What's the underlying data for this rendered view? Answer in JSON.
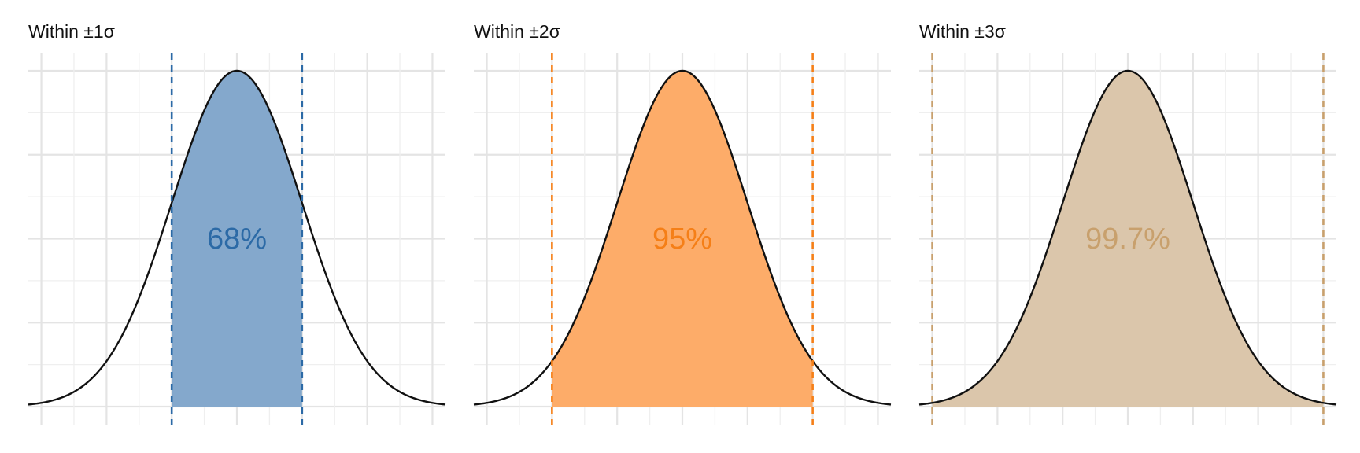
{
  "chart_data": [
    {
      "type": "area",
      "title": "Within ±1σ",
      "label": "68%",
      "sigma_range": [
        -1,
        1
      ],
      "xlim": [
        -3.2,
        3.2
      ],
      "color": "#2c6aa6",
      "fill": "#84a8cc"
    },
    {
      "type": "area",
      "title": "Within ±2σ",
      "label": "95%",
      "sigma_range": [
        -2,
        2
      ],
      "xlim": [
        -3.2,
        3.2
      ],
      "color": "#f57f17",
      "fill": "#fdac69"
    },
    {
      "type": "area",
      "title": "Within ±3σ",
      "label": "99.7%",
      "sigma_range": [
        -3,
        3
      ],
      "xlim": [
        -3.2,
        3.2
      ],
      "color": "#c8a06d",
      "fill": "#dbc6ab"
    }
  ]
}
